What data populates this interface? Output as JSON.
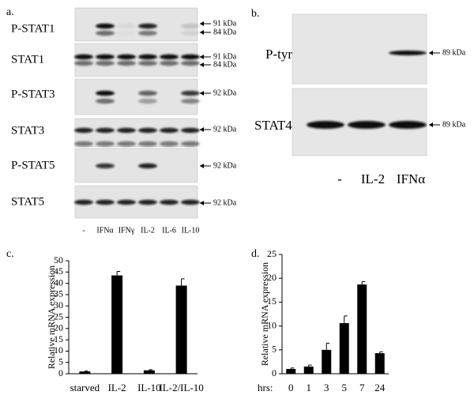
{
  "panel_a": {
    "panel_label": "a.",
    "rows": [
      {
        "name": "P-STAT1",
        "kda": [
          "91 kDa",
          "84 kDa"
        ]
      },
      {
        "name": "STAT1",
        "kda": [
          "91 kDa",
          "84 kDa"
        ]
      },
      {
        "name": "P-STAT3",
        "kda": [
          "92 kDa"
        ]
      },
      {
        "name": "STAT3",
        "kda": [
          "92 kDa"
        ]
      },
      {
        "name": "P-STAT5",
        "kda": [
          "92 kDa"
        ]
      },
      {
        "name": "STAT5",
        "kda": [
          "92 kDa"
        ]
      }
    ],
    "lanes": [
      "-",
      "IFNα",
      "IFNγ",
      "IL-2",
      "IL-6",
      "IL-10"
    ]
  },
  "panel_b": {
    "panel_label": "b.",
    "rows": [
      {
        "name": "P-tyr",
        "kda": [
          "89 kDa"
        ]
      },
      {
        "name": "STAT4",
        "kda": [
          "89 kDa"
        ]
      }
    ],
    "lanes": [
      "-",
      "IL-2",
      "IFNα"
    ]
  },
  "chart_data": [
    {
      "type": "bar",
      "panel_label": "c.",
      "y_label": "Relative mRNA expression",
      "categories": [
        "starved",
        "IL-2",
        "IL-10",
        "IL-2/IL-10"
      ],
      "values": [
        1,
        43.5,
        1.5,
        39
      ],
      "errors": [
        0.2,
        1.8,
        0.3,
        3
      ],
      "color": "#000000",
      "ylim": [
        0,
        50
      ],
      "yticks": [
        0,
        5,
        10,
        15,
        20,
        25,
        30,
        35,
        40,
        45,
        50
      ]
    },
    {
      "type": "bar",
      "panel_label": "d.",
      "y_label": "Relative mRNA expression",
      "x_label": "hrs:",
      "categories": [
        "0",
        "1",
        "3",
        "5",
        "7",
        "24"
      ],
      "values": [
        1,
        1.5,
        5,
        10.6,
        18.7,
        4.3
      ],
      "errors": [
        0.2,
        0.3,
        1.4,
        1.5,
        0.6,
        0.3
      ],
      "color": "#000000",
      "ylim": [
        0,
        25
      ],
      "yticks": [
        0,
        5,
        10,
        15,
        20,
        25
      ]
    }
  ]
}
